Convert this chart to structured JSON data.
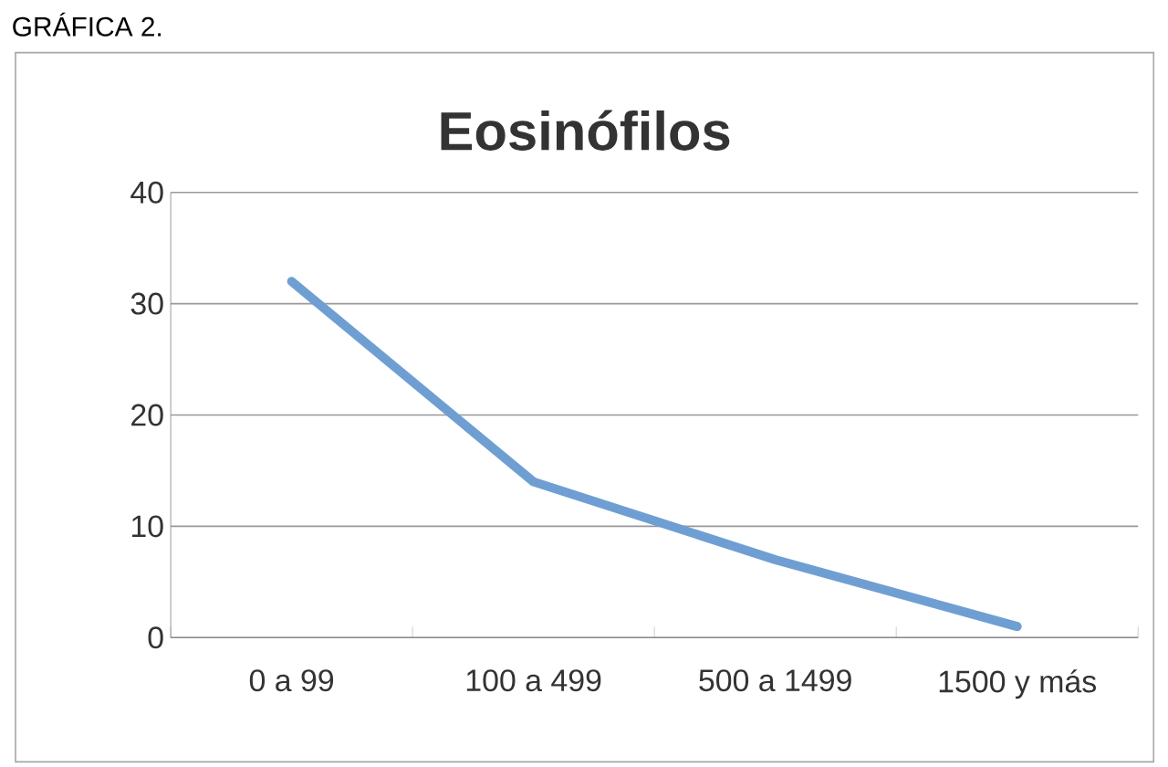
{
  "chart_data": {
    "type": "line",
    "title": "Eosinófilos",
    "annotations": [
      "GRÁFICA 2."
    ],
    "categories": [
      "0 a 99",
      "100 a 499",
      "500  a  1499",
      "1500 y más"
    ],
    "series": [
      {
        "color": "#6f9fd2",
        "values": [
          32,
          14,
          7,
          1
        ]
      }
    ],
    "ylim": [
      0,
      40
    ],
    "yticks": [
      0,
      10,
      20,
      30,
      40
    ],
    "grid": "y",
    "marker": "none",
    "line_style": "solid"
  }
}
